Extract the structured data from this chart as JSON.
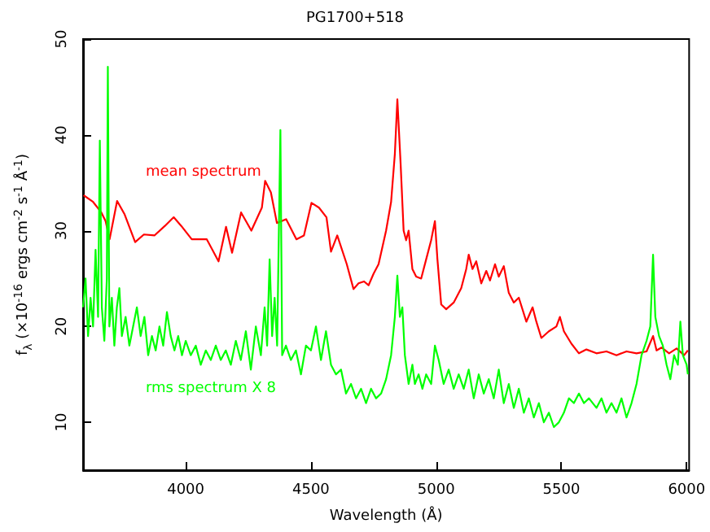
{
  "chart_data": {
    "type": "line",
    "title": "PG1700+518",
    "xlabel": "Wavelength (Å)",
    "ylabel": "f$_{λ}$ (×10$^{-16}$ ergs cm$^{-2}$ s$^{-1}$ Å$^{-1}$)",
    "xlim": [
      3590,
      6010
    ],
    "ylim": [
      5,
      50
    ],
    "xticks": [
      4000,
      4500,
      5000,
      5500,
      6000
    ],
    "yticks": [
      10,
      20,
      30,
      40,
      50
    ],
    "grid": false,
    "legend": false,
    "marker": "none",
    "line_style": "solid",
    "series": [
      {
        "name": "mean spectrum",
        "color": "#ff0000",
        "x": [
          3592,
          3630,
          3663,
          3680,
          3696,
          3726,
          3756,
          3798,
          3833,
          3875,
          3917,
          3952,
          3982,
          4024,
          4084,
          4131,
          4161,
          4185,
          4221,
          4262,
          4304,
          4317,
          4340,
          4364,
          4401,
          4442,
          4472,
          4502,
          4532,
          4562,
          4580,
          4605,
          4643,
          4670,
          4690,
          4712,
          4730,
          4750,
          4770,
          4800,
          4820,
          4835,
          4845,
          4858,
          4870,
          4880,
          4890,
          4905,
          4920,
          4940,
          4960,
          4980,
          4995,
          5005,
          5020,
          5040,
          5070,
          5100,
          5120,
          5130,
          5145,
          5160,
          5180,
          5200,
          5215,
          5235,
          5250,
          5270,
          5290,
          5310,
          5330,
          5360,
          5385,
          5400,
          5420,
          5450,
          5480,
          5494,
          5510,
          5540,
          5570,
          5600,
          5640,
          5680,
          5720,
          5760,
          5800,
          5840,
          5866,
          5880,
          5900,
          5930,
          5960,
          5990,
          6005
        ],
        "values": [
          33.7,
          33,
          31.9,
          31,
          29.1,
          33.1,
          31.7,
          28.8,
          29.6,
          29.5,
          30.5,
          31.4,
          30.5,
          29.1,
          29.1,
          26.8,
          30.4,
          27.7,
          31.9,
          30,
          32.4,
          35.2,
          34,
          30.8,
          31.2,
          29.1,
          29.5,
          32.9,
          32.4,
          31.4,
          27.8,
          29.5,
          26.5,
          23.9,
          24.5,
          24.7,
          24.3,
          25.5,
          26.5,
          30,
          33,
          38,
          43.7,
          37,
          30,
          29,
          30,
          26,
          25.2,
          25,
          27,
          29,
          31,
          27,
          22.3,
          21.8,
          22.5,
          24,
          26,
          27.5,
          26,
          26.8,
          24.5,
          25.8,
          24.8,
          26.5,
          25.2,
          26.3,
          23.5,
          22.5,
          23,
          20.5,
          22,
          20.5,
          18.8,
          19.5,
          20,
          21,
          19.5,
          18.2,
          17.2,
          17.6,
          17.2,
          17.4,
          17,
          17.4,
          17.2,
          17.4,
          19,
          17.5,
          17.8,
          17.2,
          17.7,
          17,
          17.5
        ]
      },
      {
        "name": "rms spectrum X 8",
        "color": "#00ff00",
        "x": [
          3590,
          3600,
          3610,
          3620,
          3630,
          3640,
          3650,
          3657,
          3665,
          3675,
          3685,
          3689,
          3695,
          3705,
          3715,
          3725,
          3735,
          3745,
          3760,
          3775,
          3790,
          3805,
          3820,
          3835,
          3850,
          3865,
          3880,
          3895,
          3910,
          3925,
          3940,
          3955,
          3970,
          3985,
          4000,
          4020,
          4040,
          4060,
          4080,
          4100,
          4120,
          4140,
          4160,
          4180,
          4200,
          4220,
          4240,
          4260,
          4280,
          4300,
          4315,
          4325,
          4335,
          4345,
          4355,
          4365,
          4378,
          4385,
          4400,
          4420,
          4440,
          4460,
          4480,
          4500,
          4520,
          4540,
          4560,
          4580,
          4600,
          4620,
          4640,
          4660,
          4680,
          4700,
          4720,
          4740,
          4760,
          4780,
          4800,
          4820,
          4835,
          4845,
          4855,
          4865,
          4875,
          4890,
          4905,
          4915,
          4930,
          4945,
          4960,
          4980,
          4995,
          5010,
          5030,
          5050,
          5070,
          5090,
          5110,
          5130,
          5150,
          5170,
          5190,
          5210,
          5230,
          5250,
          5270,
          5290,
          5310,
          5330,
          5350,
          5370,
          5390,
          5410,
          5430,
          5450,
          5470,
          5490,
          5510,
          5530,
          5550,
          5570,
          5590,
          5610,
          5640,
          5660,
          5680,
          5700,
          5720,
          5740,
          5760,
          5780,
          5800,
          5820,
          5840,
          5855,
          5866,
          5875,
          5890,
          5905,
          5920,
          5935,
          5950,
          5965,
          5975,
          5985,
          6000,
          6005
        ],
        "values": [
          22,
          25,
          19,
          23,
          20,
          28,
          21,
          39.4,
          22,
          18.5,
          25,
          47.1,
          20,
          23,
          18,
          22,
          24,
          19,
          21,
          18,
          20,
          22,
          19,
          21,
          17,
          19,
          17.5,
          20,
          18,
          21.5,
          19,
          17.5,
          19,
          17,
          18.5,
          17,
          18,
          16,
          17.5,
          16.5,
          18,
          16.5,
          17.5,
          16,
          18.5,
          16.5,
          19.5,
          15.5,
          20,
          17,
          22,
          18,
          27,
          19,
          23,
          18,
          40.5,
          17,
          18,
          16.5,
          17.5,
          15,
          18,
          17.5,
          20,
          16.5,
          19.5,
          16,
          15,
          15.5,
          13,
          14,
          12.5,
          13.5,
          12,
          13.5,
          12.5,
          13,
          14.5,
          17,
          21,
          25.3,
          21,
          22,
          17,
          14,
          16,
          14,
          15,
          13.5,
          15,
          14,
          18,
          16.5,
          14,
          15.5,
          13.5,
          15,
          13.5,
          15.5,
          12.5,
          15,
          13,
          14.5,
          12.5,
          15.5,
          12,
          14,
          11.5,
          13.5,
          11,
          12.5,
          10.5,
          12,
          10,
          11,
          9.5,
          10,
          11,
          12.5,
          12,
          13,
          12,
          12.5,
          11.5,
          12.5,
          11,
          12,
          11,
          12.5,
          10.5,
          12,
          14,
          17,
          18.5,
          20,
          27.5,
          21,
          19,
          18,
          16,
          14.5,
          17,
          16,
          20.5,
          17,
          16,
          15
        ]
      }
    ]
  }
}
